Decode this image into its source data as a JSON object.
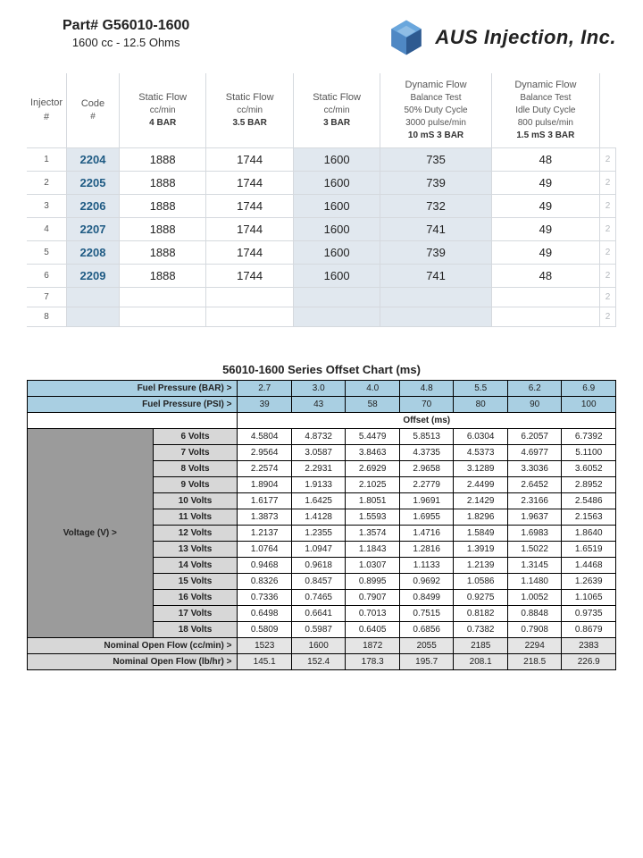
{
  "header": {
    "part_label": "Part# G56010-1600",
    "spec": "1600 cc - 12.5 Ohms",
    "brand": "AUS Injection, Inc."
  },
  "flow_table": {
    "columns": [
      {
        "l1": "Injector #"
      },
      {
        "l1": "Code",
        "l2": "#"
      },
      {
        "l1": "Static Flow",
        "l2": "cc/min",
        "l3": "4 BAR"
      },
      {
        "l1": "Static Flow",
        "l2": "cc/min",
        "l3": "3.5 BAR"
      },
      {
        "l1": "Static Flow",
        "l2": "cc/min",
        "l3": "3 BAR"
      },
      {
        "l1": "Dynamic Flow",
        "l2": "Balance Test",
        "l3": "50% Duty Cycle",
        "l4": "3000 pulse/min",
        "l5": "10 mS  3 BAR"
      },
      {
        "l1": "Dynamic Flow",
        "l2": "Balance Test",
        "l3": "Idle Duty Cycle",
        "l4": "800 pulse/min",
        "l5": "1.5 mS 3 BAR"
      }
    ],
    "rows": [
      {
        "n": "1",
        "code": "2204",
        "f4": "1888",
        "f35": "1744",
        "f3": "1600",
        "d50": "735",
        "didle": "48",
        "t": "2"
      },
      {
        "n": "2",
        "code": "2205",
        "f4": "1888",
        "f35": "1744",
        "f3": "1600",
        "d50": "739",
        "didle": "49",
        "t": "2"
      },
      {
        "n": "3",
        "code": "2206",
        "f4": "1888",
        "f35": "1744",
        "f3": "1600",
        "d50": "732",
        "didle": "49",
        "t": "2"
      },
      {
        "n": "4",
        "code": "2207",
        "f4": "1888",
        "f35": "1744",
        "f3": "1600",
        "d50": "741",
        "didle": "49",
        "t": "2"
      },
      {
        "n": "5",
        "code": "2208",
        "f4": "1888",
        "f35": "1744",
        "f3": "1600",
        "d50": "739",
        "didle": "49",
        "t": "2"
      },
      {
        "n": "6",
        "code": "2209",
        "f4": "1888",
        "f35": "1744",
        "f3": "1600",
        "d50": "741",
        "didle": "48",
        "t": "2"
      },
      {
        "n": "7",
        "code": "",
        "f4": "",
        "f35": "",
        "f3": "",
        "d50": "",
        "didle": "",
        "t": "2"
      },
      {
        "n": "8",
        "code": "",
        "f4": "",
        "f35": "",
        "f3": "",
        "d50": "",
        "didle": "",
        "t": "2"
      }
    ]
  },
  "offset_chart": {
    "title": "56010-1600 Series Offset Chart (ms)",
    "bar_label": "Fuel Pressure (BAR) >",
    "psi_label": "Fuel Pressure (PSI) >",
    "offset_label": "Offset (ms)",
    "volt_label": "Voltage (V) >",
    "bar": [
      "2.7",
      "3.0",
      "4.0",
      "4.8",
      "5.5",
      "6.2",
      "6.9"
    ],
    "psi": [
      "39",
      "43",
      "58",
      "70",
      "80",
      "90",
      "100"
    ],
    "volts": [
      "6 Volts",
      "7 Volts",
      "8 Volts",
      "9 Volts",
      "10 Volts",
      "11 Volts",
      "12 Volts",
      "13 Volts",
      "14 Volts",
      "15 Volts",
      "16 Volts",
      "17 Volts",
      "18 Volts"
    ],
    "grid": [
      [
        "4.5804",
        "4.8732",
        "5.4479",
        "5.8513",
        "6.0304",
        "6.2057",
        "6.7392"
      ],
      [
        "2.9564",
        "3.0587",
        "3.8463",
        "4.3735",
        "4.5373",
        "4.6977",
        "5.1100"
      ],
      [
        "2.2574",
        "2.2931",
        "2.6929",
        "2.9658",
        "3.1289",
        "3.3036",
        "3.6052"
      ],
      [
        "1.8904",
        "1.9133",
        "2.1025",
        "2.2779",
        "2.4499",
        "2.6452",
        "2.8952"
      ],
      [
        "1.6177",
        "1.6425",
        "1.8051",
        "1.9691",
        "2.1429",
        "2.3166",
        "2.5486"
      ],
      [
        "1.3873",
        "1.4128",
        "1.5593",
        "1.6955",
        "1.8296",
        "1.9637",
        "2.1563"
      ],
      [
        "1.2137",
        "1.2355",
        "1.3574",
        "1.4716",
        "1.5849",
        "1.6983",
        "1.8640"
      ],
      [
        "1.0764",
        "1.0947",
        "1.1843",
        "1.2816",
        "1.3919",
        "1.5022",
        "1.6519"
      ],
      [
        "0.9468",
        "0.9618",
        "1.0307",
        "1.1133",
        "1.2139",
        "1.3145",
        "1.4468"
      ],
      [
        "0.8326",
        "0.8457",
        "0.8995",
        "0.9692",
        "1.0586",
        "1.1480",
        "1.2639"
      ],
      [
        "0.7336",
        "0.7465",
        "0.7907",
        "0.8499",
        "0.9275",
        "1.0052",
        "1.1065"
      ],
      [
        "0.6498",
        "0.6641",
        "0.7013",
        "0.7515",
        "0.8182",
        "0.8848",
        "0.9735"
      ],
      [
        "0.5809",
        "0.5987",
        "0.6405",
        "0.6856",
        "0.7382",
        "0.7908",
        "0.8679"
      ]
    ],
    "nom_cc_label": "Nominal Open Flow (cc/min) >",
    "nom_cc": [
      "1523",
      "1600",
      "1872",
      "2055",
      "2185",
      "2294",
      "2383"
    ],
    "nom_lb_label": "Nominal Open Flow (lb/hr) >",
    "nom_lb": [
      "145.1",
      "152.4",
      "178.3",
      "195.7",
      "208.1",
      "218.5",
      "226.9"
    ]
  }
}
